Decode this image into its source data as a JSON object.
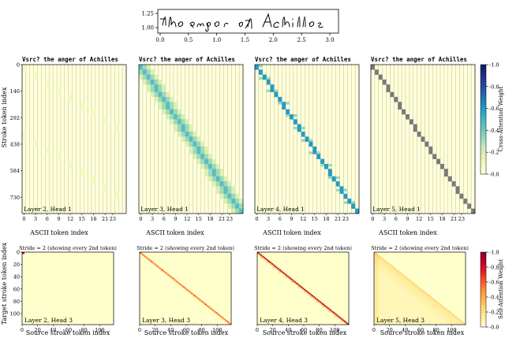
{
  "colors": {
    "ylgnbu": [
      "#ffffd9",
      "#edf8b1",
      "#c7e9b4",
      "#7fcdbb",
      "#41b6c4",
      "#1d91c0",
      "#225ea8",
      "#253494",
      "#081d58"
    ],
    "ylorrd": [
      "#ffffcc",
      "#ffeda0",
      "#fed976",
      "#feb24c",
      "#fd8d3c",
      "#fc4e2a",
      "#e31a1c",
      "#bd0026",
      "#800026"
    ],
    "ink": "#000000",
    "grid_stripe": "#4a4a4a"
  },
  "chart_data": [
    {
      "type": "line",
      "description_label": "handwriting-stroke-preview",
      "text": "the anger of Achilles",
      "xlim": [
        0.0,
        3.1
      ],
      "ylim": [
        0.85,
        1.35
      ],
      "xticks": [
        0.0,
        0.5,
        1.0,
        1.5,
        2.0,
        2.5,
        3.0
      ],
      "xtick_labels": [
        "0.0",
        "0.5",
        "1.0",
        "1.5",
        "2.0",
        "2.5",
        "3.0"
      ],
      "yticks": [
        1.0,
        1.25
      ],
      "ytick_labels": [
        "1.00",
        "1.25"
      ]
    },
    {
      "type": "heatmap",
      "row": "cross-attention",
      "shared_title": "Vsrc? the anger of Achilles",
      "xlabel": "ASCII token index",
      "ylabel": "Stroke token index",
      "xticks": [
        0,
        3,
        6,
        9,
        12,
        15,
        18,
        21,
        23
      ],
      "xtick_labels": [
        "0",
        "3",
        "6",
        "9",
        "12",
        "15",
        "18",
        "21",
        "23"
      ],
      "yticks": [
        0,
        146,
        292,
        438,
        584,
        730
      ],
      "ytick_labels": [
        "0",
        "146",
        "292",
        "438",
        "584",
        "730"
      ],
      "n_cols": 27,
      "n_rows": 820,
      "colorbar": {
        "label": "Cross-Attention Weight",
        "ticks": [
          "0.0",
          "0.2",
          "0.4",
          "0.6",
          "0.8",
          "1.0"
        ],
        "range": [
          0,
          1
        ]
      },
      "panels": [
        {
          "label": "Layer 2, Head 1",
          "pattern": "diffuse",
          "sharpness": 0.05
        },
        {
          "label": "Layer 3, Head 1",
          "pattern": "diagonal-soft",
          "sharpness": 0.45
        },
        {
          "label": "Layer 4, Head 1",
          "pattern": "diagonal-steps",
          "sharpness": 0.6
        },
        {
          "label": "Layer 5, Head 1",
          "pattern": "diagonal-sharp",
          "sharpness": 0.85
        }
      ]
    },
    {
      "type": "heatmap",
      "row": "self-attention",
      "subtitle": "Stride = 2 (showing every 2nd token)",
      "xlabel": "Source stroke token index",
      "ylabel": "Target stroke token index",
      "xticks": [
        0,
        20,
        40,
        60,
        80,
        100
      ],
      "xtick_labels": [
        "0",
        "20",
        "40",
        "60",
        "80",
        "100"
      ],
      "yticks": [
        0,
        20,
        40,
        60,
        80,
        100
      ],
      "ytick_labels": [
        "0",
        "20",
        "40",
        "60",
        "80",
        "100"
      ],
      "n": 118,
      "colorbar": {
        "label": "Self-Attention Weight",
        "ticks": [
          "0.0",
          "0.2",
          "0.4",
          "0.6",
          "0.8",
          "1.0"
        ],
        "range": [
          0,
          1
        ]
      },
      "panels": [
        {
          "label": "Layer 2, Head 3",
          "pattern": "near-uniform"
        },
        {
          "label": "Layer 3, Head 3",
          "pattern": "diagonal"
        },
        {
          "label": "Layer 4, Head 3",
          "pattern": "diagonal-strong"
        },
        {
          "label": "Layer 5, Head 3",
          "pattern": "lower-triangular-diffuse"
        }
      ]
    }
  ]
}
